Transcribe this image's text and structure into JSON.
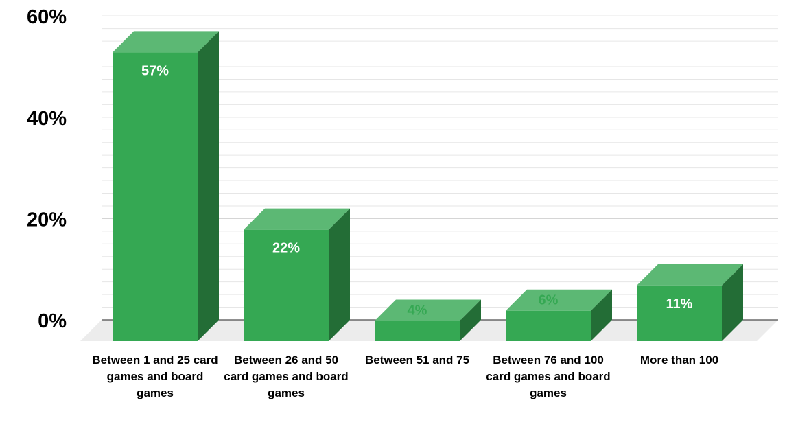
{
  "chart_data": {
    "type": "bar",
    "categories": [
      "Between 1 and 25 card games and board games",
      "Between 26 and 50 card games and board games",
      "Between 51 and 75",
      "Between 76 and 100 card games and board games",
      "More than 100"
    ],
    "values": [
      57,
      22,
      4,
      6,
      11
    ],
    "data_labels": [
      "57%",
      "22%",
      "4%",
      "6%",
      "11%"
    ],
    "ylim": [
      0,
      60
    ],
    "yticks": [
      0,
      20,
      40,
      60
    ],
    "ytick_labels": [
      "0%",
      "20%",
      "40%",
      "60%"
    ],
    "grid": true,
    "style": "3d",
    "colors": {
      "front": "#35a853",
      "top": "#5cb874",
      "side": "#236d36",
      "floor": "#ececec",
      "grid": "#dddddd",
      "small_label": "#35a853"
    }
  }
}
